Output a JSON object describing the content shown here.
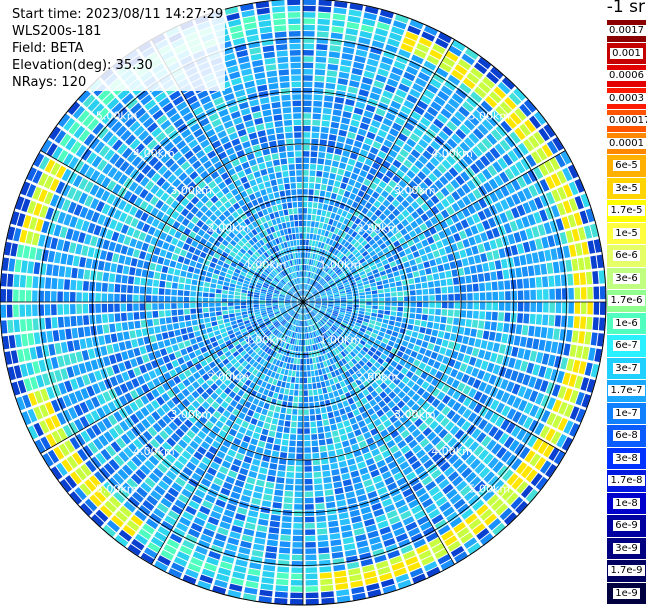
{
  "header": {
    "start_time": "Start time: 2023/08/11 14:27:29",
    "device": "WLS200s-181",
    "field": "Field: BETA",
    "elevation": "Elevation(deg): 35.30",
    "nrays": "NRays: 120"
  },
  "colorbar": {
    "unit_label": "-1 sr",
    "ticks": [
      "0.0017",
      "0.001",
      "0.0006",
      "0.0003",
      "0.00017",
      "0.0001",
      "6e-5",
      "3e-5",
      "1.7e-5",
      "1e-5",
      "6e-6",
      "3e-6",
      "1.7e-6",
      "1e-6",
      "6e-7",
      "3e-7",
      "1.7e-7",
      "1e-7",
      "6e-8",
      "3e-8",
      "1.7e-8",
      "1e-8",
      "6e-9",
      "3e-9",
      "1.7e-9",
      "1e-9"
    ],
    "colors": [
      "#8b0000",
      "#c40000",
      "#e20000",
      "#ff1a00",
      "#ff5500",
      "#ff8800",
      "#ffb000",
      "#ffd400",
      "#ffff00",
      "#ffff40",
      "#e6ff66",
      "#c0ff80",
      "#90ff90",
      "#50ffc0",
      "#2af0ff",
      "#20d0ff",
      "#1aa8ff",
      "#1080ff",
      "#0a5cff",
      "#0033ff",
      "#0018e0",
      "#0000cc",
      "#0000a0",
      "#000080",
      "#000060",
      "#000040"
    ]
  },
  "chart_data": {
    "type": "ppi-polar",
    "field": "BETA",
    "elevation_deg": 35.3,
    "n_rays": 120,
    "range_rings_km": [
      1.0,
      2.0,
      3.0,
      4.0,
      5.0
    ],
    "ring_labels": [
      "1.00km",
      "2.00km",
      "3.00km",
      "4.00km",
      "5.00km"
    ],
    "spokes_deg": [
      0,
      30,
      60,
      90,
      120,
      150,
      180,
      210,
      240,
      270,
      300,
      330
    ],
    "max_range_km": 5.75,
    "high_backscatter_band_km": [
      5.2,
      5.55
    ],
    "scale": "log"
  }
}
